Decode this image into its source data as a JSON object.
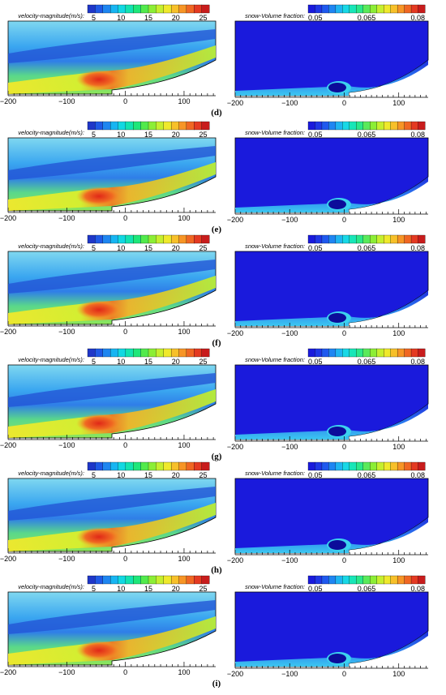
{
  "velocity_legend": {
    "title": "velocity-magnitude(m/s):",
    "ticks": [
      "5",
      "10",
      "15",
      "20",
      "25"
    ],
    "colors": [
      "#1f37c8",
      "#1f59e6",
      "#1e86f0",
      "#17b5f2",
      "#12d8e2",
      "#12e3b1",
      "#1ee77a",
      "#52ea4c",
      "#8cee36",
      "#c6ef2e",
      "#efe92c",
      "#f7c02a",
      "#f79526",
      "#f06723",
      "#e43a22",
      "#c81c1c"
    ]
  },
  "snow_legend": {
    "title": "snow-Volume fraction:",
    "ticks": [
      "0.05",
      "0.065",
      "0.08"
    ],
    "colors": [
      "#1a1adc",
      "#1f37e6",
      "#1f59ee",
      "#1f86f2",
      "#1fb5f2",
      "#18d8e6",
      "#18e6b8",
      "#2ae88a",
      "#5aea5a",
      "#8cee36",
      "#c6ef2e",
      "#efe92c",
      "#f7c02a",
      "#f79526",
      "#f06723",
      "#e43a22",
      "#c81c1c"
    ]
  },
  "x_ticks": [
    "−200",
    "−100",
    "0",
    "100"
  ],
  "panels": [
    {
      "label": "(d)"
    },
    {
      "label": "(e)"
    },
    {
      "label": "(f)"
    },
    {
      "label": "(g)"
    },
    {
      "label": "(h)"
    },
    {
      "label": "(i)"
    }
  ]
}
